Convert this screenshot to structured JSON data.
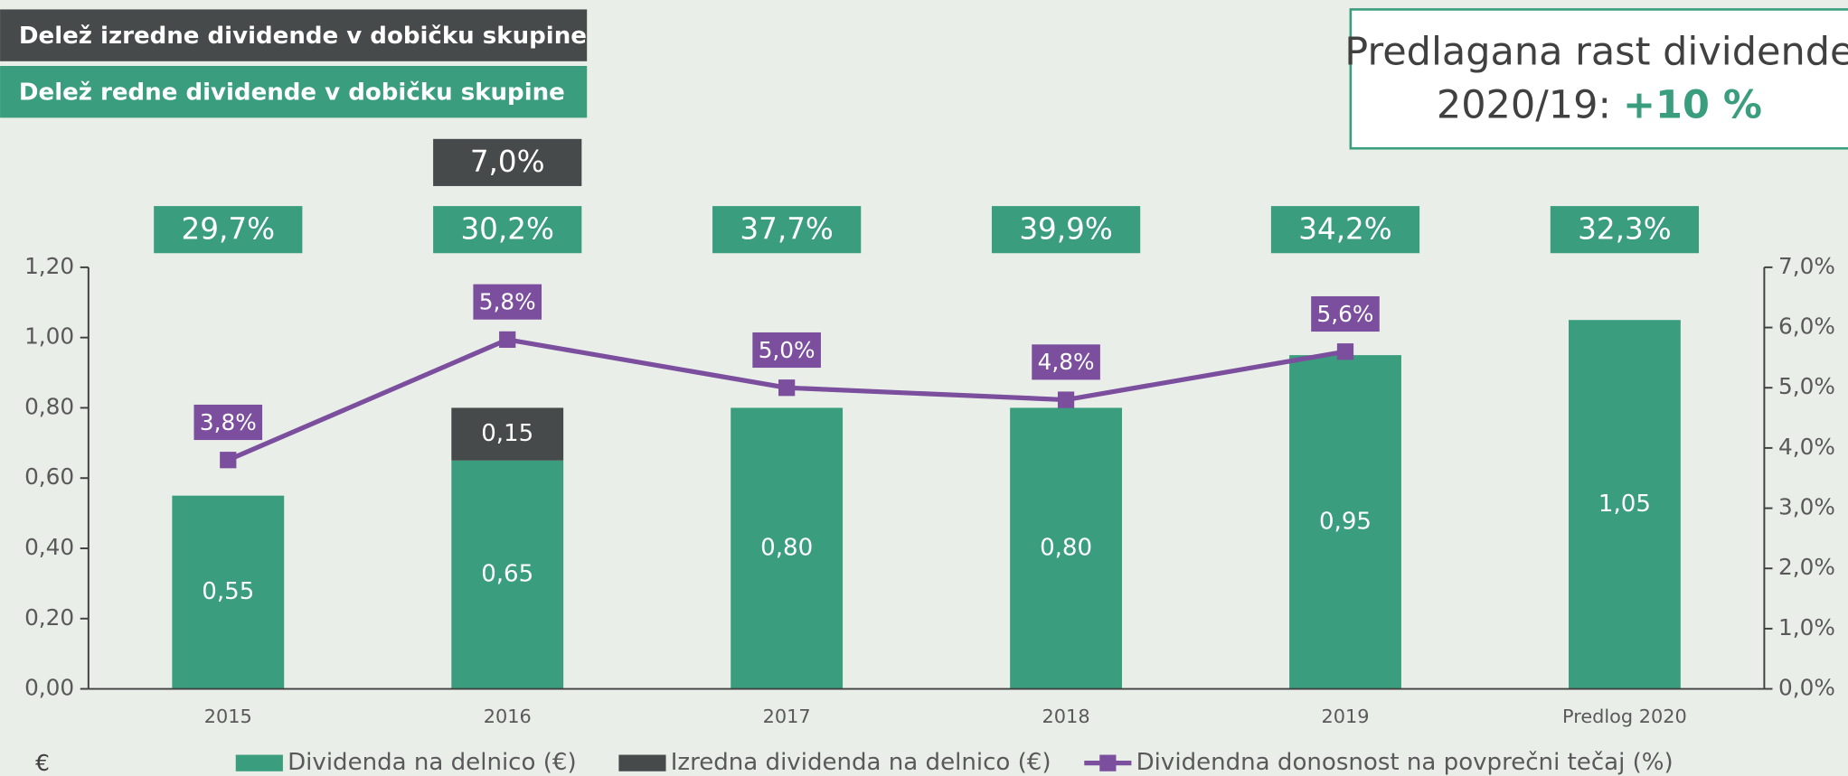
{
  "chart_data": {
    "type": "bar",
    "categories": [
      "2015",
      "2016",
      "2017",
      "2018",
      "2019",
      "Predlog 2020"
    ],
    "series": [
      {
        "name": "Dividenda na delnico (€)",
        "color": "#3a9e7e",
        "stack": "dividend",
        "values": [
          0.55,
          0.65,
          0.8,
          0.8,
          0.95,
          1.05
        ],
        "value_labels": [
          "0,55",
          "0,65",
          "0,80",
          "0,80",
          "0,95",
          "1,05"
        ]
      },
      {
        "name": "Izredna dividenda na delnico (€)",
        "color": "#464a4a",
        "stack": "dividend",
        "values": [
          null,
          0.15,
          null,
          null,
          null,
          null
        ],
        "value_labels": [
          null,
          "0,15",
          null,
          null,
          null,
          null
        ]
      },
      {
        "name": "Dividendna donosnost na povprečni tečaj (%)",
        "color": "#7b4f9e",
        "type": "line",
        "axis": "y2",
        "values": [
          3.8,
          5.8,
          5.0,
          4.8,
          5.6,
          null
        ],
        "value_labels": [
          "3,8%",
          "5,8%",
          "5,0%",
          "4,8%",
          "5,6%",
          null
        ]
      }
    ],
    "payout_series": [
      {
        "name": "Delež redne dividende v dobičku skupine",
        "color": "#3a9e7e",
        "values": [
          29.7,
          30.2,
          37.7,
          39.9,
          34.2,
          32.3
        ],
        "value_labels": [
          "29,7%",
          "30,2%",
          "37,7%",
          "39,9%",
          "34,2%",
          "32,3%"
        ]
      },
      {
        "name": "Delež izredne dividende v dobičku skupine",
        "color": "#464a4a",
        "values": [
          null,
          7.0,
          null,
          null,
          null,
          null
        ],
        "value_labels": [
          null,
          "7,0%",
          null,
          null,
          null,
          null
        ]
      }
    ],
    "ylabel": "€",
    "ylim": [
      0,
      1.2
    ],
    "yticks": [
      {
        "value": 0,
        "label": "0,00"
      },
      {
        "value": 0.2,
        "label": "0,20"
      },
      {
        "value": 0.4,
        "label": "0,40"
      },
      {
        "value": 0.6,
        "label": "0,60"
      },
      {
        "value": 0.8,
        "label": "0,80"
      },
      {
        "value": 1.0,
        "label": "1,00"
      },
      {
        "value": 1.2,
        "label": "1,20"
      }
    ],
    "y2lim": [
      0,
      7
    ],
    "y2ticks": [
      {
        "value": 0,
        "label": "0,0%"
      },
      {
        "value": 1,
        "label": "1,0%"
      },
      {
        "value": 2,
        "label": "2,0%"
      },
      {
        "value": 3,
        "label": "3,0%"
      },
      {
        "value": 4,
        "label": "4,0%"
      },
      {
        "value": 5,
        "label": "5,0%"
      },
      {
        "value": 6,
        "label": "6,0%"
      },
      {
        "value": 7,
        "label": "7,0%"
      }
    ],
    "legend": "bottom",
    "annotation": {
      "line1": "Predlagana rast dividende",
      "line2": "2020/19:",
      "highlight": "+10 %",
      "highlight_color": "#3a9e7e"
    }
  }
}
